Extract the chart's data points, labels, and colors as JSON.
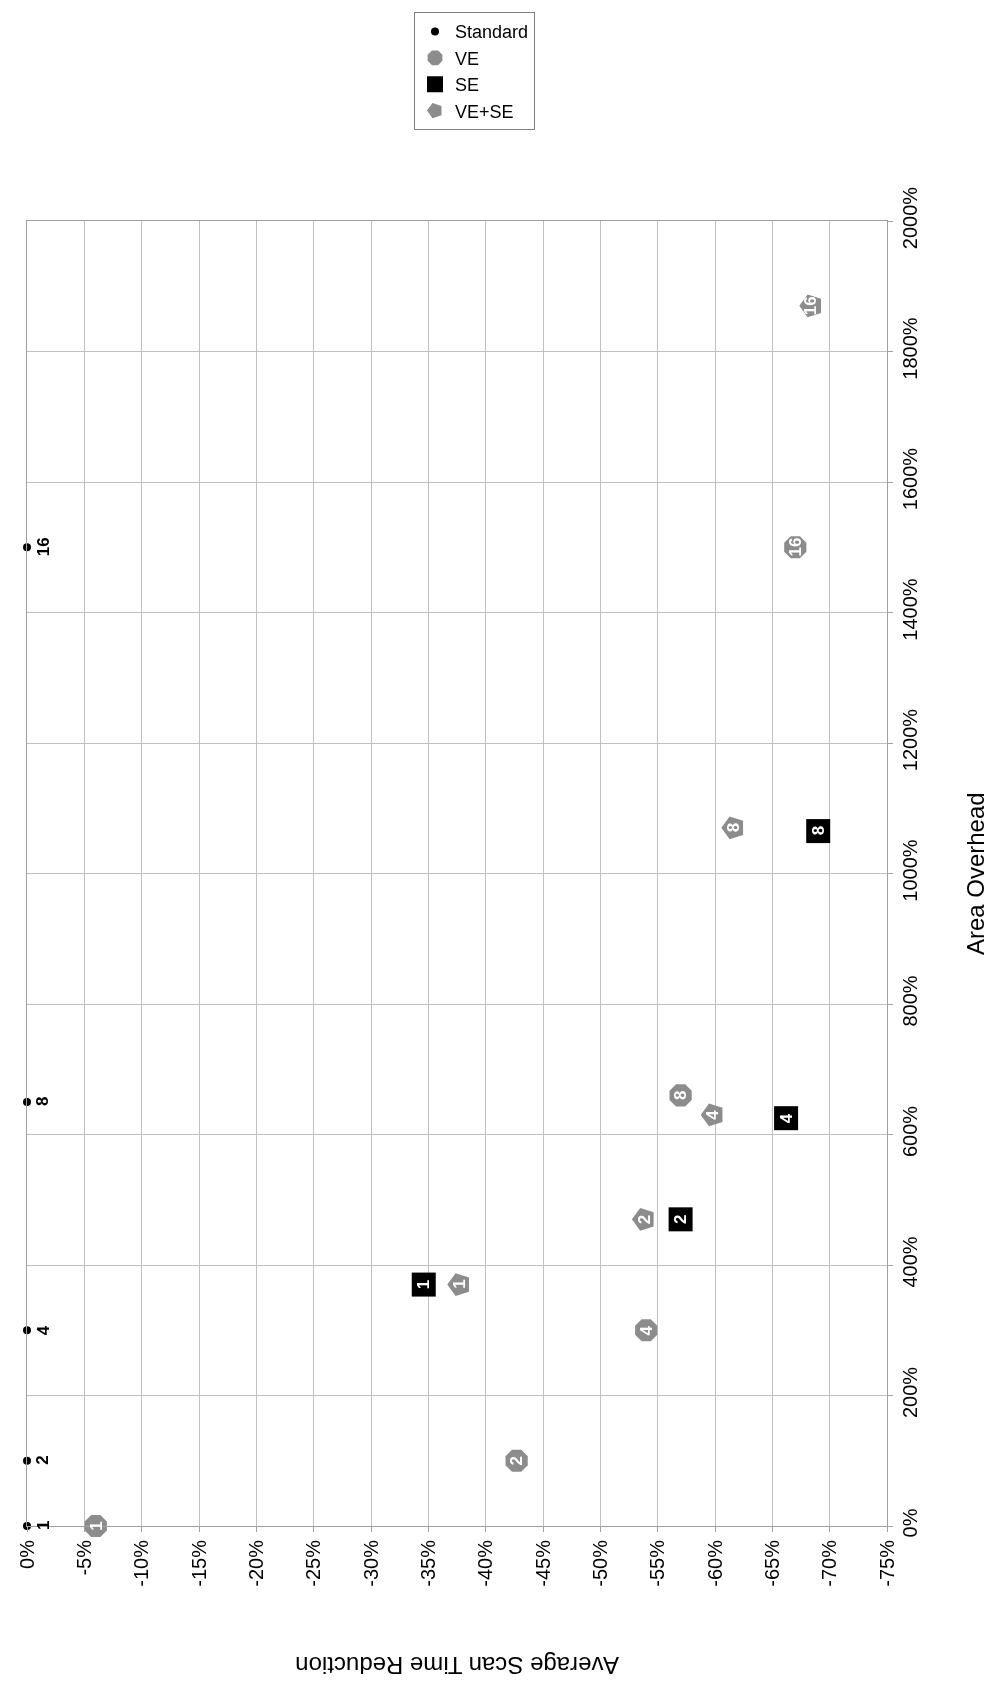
{
  "chart_data": {
    "type": "scatter",
    "xlabel": "Average Scan Time Reduction",
    "ylabel": "Area Overhead",
    "xlim": [
      0,
      -75
    ],
    "ylim": [
      0,
      2000
    ],
    "xticks": [
      {
        "value": 0,
        "label": "0%"
      },
      {
        "value": -5,
        "label": "-5%"
      },
      {
        "value": -10,
        "label": "-10%"
      },
      {
        "value": -15,
        "label": "-15%"
      },
      {
        "value": -20,
        "label": "-20%"
      },
      {
        "value": -25,
        "label": "-25%"
      },
      {
        "value": -30,
        "label": "-30%"
      },
      {
        "value": -35,
        "label": "-35%"
      },
      {
        "value": -40,
        "label": "-40%"
      },
      {
        "value": -45,
        "label": "-45%"
      },
      {
        "value": -50,
        "label": "-50%"
      },
      {
        "value": -55,
        "label": "-55%"
      },
      {
        "value": -60,
        "label": "-60%"
      },
      {
        "value": -65,
        "label": "-65%"
      },
      {
        "value": -70,
        "label": "-70%"
      },
      {
        "value": -75,
        "label": "-75%"
      }
    ],
    "yticks": [
      {
        "value": 0,
        "label": "0%"
      },
      {
        "value": 200,
        "label": "200%"
      },
      {
        "value": 400,
        "label": "400%"
      },
      {
        "value": 600,
        "label": "600%"
      },
      {
        "value": 800,
        "label": "800%"
      },
      {
        "value": 1000,
        "label": "1000%"
      },
      {
        "value": 1200,
        "label": "1200%"
      },
      {
        "value": 1400,
        "label": "1400%"
      },
      {
        "value": 1600,
        "label": "1600%"
      },
      {
        "value": 1800,
        "label": "1800%"
      },
      {
        "value": 2000,
        "label": "2000%"
      }
    ],
    "grid": true,
    "legend": "top right",
    "series": [
      {
        "name": "Standard",
        "color": "#000000",
        "marker": "circle",
        "x": [
          0,
          0,
          0,
          0,
          0
        ],
        "values": [
          0,
          100,
          300,
          650,
          1500
        ]
      },
      {
        "name": "VE",
        "color": "#8c8c8c",
        "marker": "circle",
        "x": [
          -6,
          -42.7,
          -54,
          -57,
          -67
        ],
        "values": [
          0,
          100,
          300,
          660,
          1500
        ]
      },
      {
        "name": "SE",
        "color": "#000000",
        "marker": "square",
        "x": [
          -34.6,
          -57,
          -66.2,
          -69
        ],
        "values": [
          370,
          470,
          625,
          1065
        ]
      },
      {
        "name": "VE+SE",
        "color": "#8c8c8c",
        "marker": "triangle",
        "x": [
          -37.7,
          -53.8,
          -59.8,
          -61.6,
          -68.4
        ],
        "values": [
          370,
          470,
          630,
          1070,
          1870
        ]
      }
    ],
    "annotations": [
      {
        "text": "1",
        "x": 0,
        "y": 0
      },
      {
        "text": "2",
        "x": 0,
        "y": 100
      },
      {
        "text": "4",
        "x": 0,
        "y": 300
      },
      {
        "text": "8",
        "x": 0,
        "y": 650
      },
      {
        "text": "16",
        "x": 0,
        "y": 1500
      },
      {
        "text": "1",
        "x": -6,
        "y": 0
      },
      {
        "text": "2",
        "x": -42.7,
        "y": 100
      },
      {
        "text": "4",
        "x": -54,
        "y": 300
      },
      {
        "text": "8",
        "x": -57,
        "y": 660
      },
      {
        "text": "16",
        "x": -67,
        "y": 1500
      },
      {
        "text": "1",
        "x": -34.6,
        "y": 370
      },
      {
        "text": "2",
        "x": -57,
        "y": 470
      },
      {
        "text": "4",
        "x": -66.2,
        "y": 625
      },
      {
        "text": "8",
        "x": -69,
        "y": 1065
      },
      {
        "text": "1",
        "x": -37.7,
        "y": 370
      },
      {
        "text": "2",
        "x": -53.8,
        "y": 470
      },
      {
        "text": "4",
        "x": -59.8,
        "y": 630
      },
      {
        "text": "8",
        "x": -61.6,
        "y": 1070
      },
      {
        "text": "16",
        "x": -68.4,
        "y": 1870
      }
    ]
  }
}
